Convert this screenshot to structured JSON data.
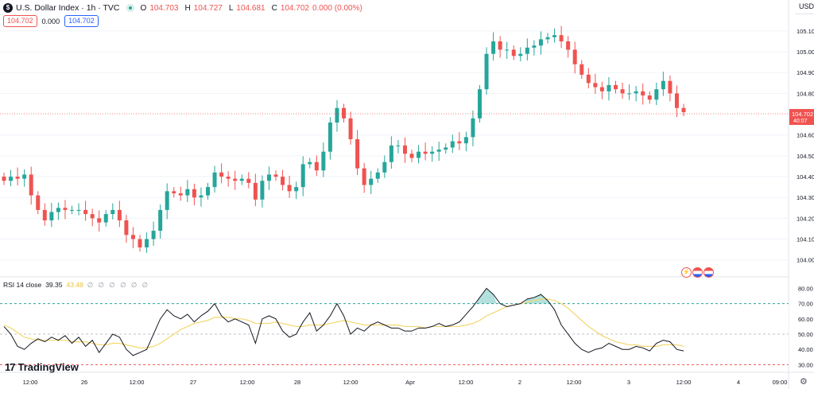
{
  "header": {
    "symbol_logo": "$",
    "title": "U.S. Dollar Index · 1h · TVC",
    "ohlc": [
      {
        "label": "O",
        "value": "104.703"
      },
      {
        "label": "H",
        "value": "104.727"
      },
      {
        "label": "L",
        "value": "104.681"
      },
      {
        "label": "C",
        "value": "104.702"
      },
      {
        "label": "",
        "value": "0.000 (0.00%)"
      }
    ],
    "pills": {
      "bid": "104.702",
      "spread": "0.000",
      "ask": "104.702"
    },
    "status_color": "#26a69a"
  },
  "currency_label": "USD",
  "rsi_header": {
    "label": "RSI 14 close",
    "value": "39.35",
    "ma": "43.48",
    "dims": "∅ ∅ ∅ ∅ ∅ ∅"
  },
  "logo": {
    "mark": "17",
    "text": "TradingView"
  },
  "event_icons": [
    "lightning-icon",
    "us-flag-icon",
    "us-flag-icon"
  ],
  "colors": {
    "up": "#26a69a",
    "down": "#ef5350",
    "rsi": "#131722",
    "rsi_ma": "#f5d76e",
    "level_70": "#26a69a",
    "level_30": "#ef5350",
    "level_50": "#9598a1"
  },
  "chart_data": [
    {
      "type": "candlestick",
      "title": "",
      "ylim": [
        103.93,
        105.18
      ],
      "yticks": [
        "105.100",
        "105.000",
        "104.900",
        "104.800",
        "104.600",
        "104.500",
        "104.400",
        "104.300",
        "104.200",
        "104.100",
        "104.000"
      ],
      "last_price": "104.702",
      "countdown": "40:07",
      "close": [
        104.38,
        104.4,
        104.39,
        104.41,
        104.31,
        104.24,
        104.19,
        104.23,
        104.25,
        104.24,
        104.24,
        104.24,
        104.22,
        104.2,
        104.18,
        104.22,
        104.24,
        104.19,
        104.12,
        104.1,
        104.06,
        104.1,
        104.14,
        104.24,
        104.33,
        104.32,
        104.31,
        104.34,
        104.3,
        104.31,
        104.35,
        104.42,
        104.4,
        104.39,
        104.38,
        104.39,
        104.37,
        104.29,
        104.38,
        104.41,
        104.4,
        104.36,
        104.33,
        104.35,
        104.46,
        104.47,
        104.43,
        104.52,
        104.66,
        104.73,
        104.68,
        104.58,
        104.44,
        104.36,
        104.39,
        104.42,
        104.47,
        104.55,
        104.55,
        104.51,
        104.49,
        104.52,
        104.51,
        104.52,
        104.53,
        104.54,
        104.57,
        104.56,
        104.59,
        104.68,
        104.82,
        104.99,
        105.05,
        105.01,
        105.01,
        104.98,
        104.99,
        105.02,
        105.03,
        105.06,
        105.07,
        105.08,
        105.05,
        105.01,
        104.94,
        104.89,
        104.85,
        104.83,
        104.81,
        104.84,
        104.82,
        104.8,
        104.8,
        104.81,
        104.79,
        104.77,
        104.82,
        104.86,
        104.8,
        104.73,
        104.71
      ],
      "x_ticks": [
        "12:00",
        "26",
        "12:00",
        "27",
        "12:00",
        "28",
        "12:00",
        "Apr",
        "12:00",
        "2",
        "12:00",
        "3",
        "12:00",
        "4",
        "09:00"
      ]
    },
    {
      "type": "line",
      "title": "",
      "series": [
        {
          "name": "RSI 14 close",
          "values": [
            55,
            50,
            42,
            40,
            44,
            47,
            45,
            48,
            46,
            49,
            44,
            48,
            42,
            46,
            38,
            44,
            50,
            48,
            40,
            36,
            38,
            40,
            50,
            60,
            66,
            62,
            60,
            63,
            58,
            62,
            65,
            70,
            62,
            58,
            60,
            58,
            56,
            44,
            60,
            62,
            60,
            52,
            48,
            50,
            58,
            64,
            52,
            56,
            62,
            70,
            62,
            50,
            54,
            52,
            56,
            58,
            56,
            54,
            54,
            52,
            52,
            54,
            54,
            55,
            57,
            55,
            56,
            58,
            63,
            68,
            74,
            80,
            76,
            70,
            68,
            69,
            70,
            73,
            74,
            76,
            72,
            66,
            56,
            50,
            44,
            40,
            38,
            40,
            41,
            44,
            42,
            40,
            40,
            42,
            41,
            39,
            44,
            46,
            45,
            40,
            39
          ]
        },
        {
          "name": "",
          "values": [
            56,
            54,
            51,
            48,
            47,
            46,
            46,
            46,
            46,
            46,
            45,
            45,
            45,
            44,
            43,
            43,
            44,
            44,
            43,
            42,
            41,
            41,
            42,
            44,
            47,
            50,
            53,
            55,
            57,
            58,
            59,
            61,
            61,
            61,
            60,
            60,
            59,
            57,
            57,
            57,
            58,
            57,
            56,
            55,
            55,
            56,
            56,
            56,
            57,
            58,
            59,
            58,
            57,
            56,
            56,
            56,
            56,
            56,
            56,
            55,
            55,
            55,
            54,
            55,
            55,
            55,
            55,
            55,
            56,
            57,
            59,
            62,
            64,
            66,
            68,
            69,
            70,
            71,
            72,
            73,
            73,
            72,
            70,
            67,
            63,
            59,
            55,
            52,
            49,
            47,
            45,
            44,
            43,
            43,
            42,
            42,
            42,
            43,
            43,
            43,
            42
          ]
        }
      ],
      "yticks": [
        "80.00",
        "70.00",
        "60.00",
        "50.00",
        "40.00",
        "30.00"
      ],
      "ylim": [
        25,
        87
      ],
      "levels": [
        70,
        50,
        30
      ]
    }
  ]
}
